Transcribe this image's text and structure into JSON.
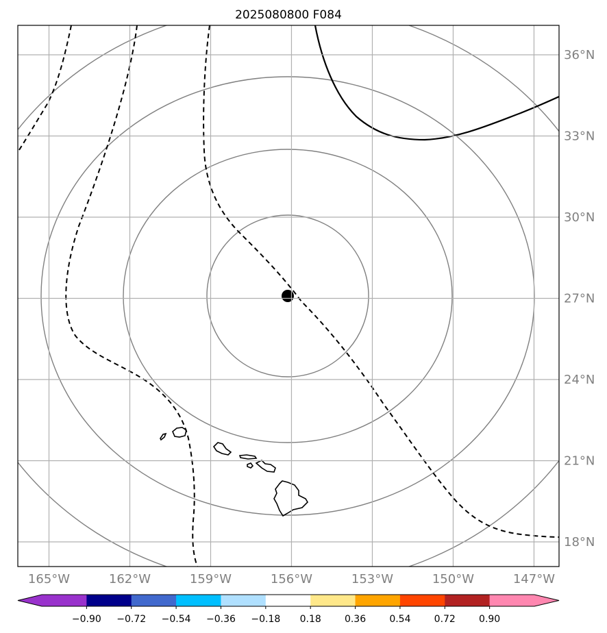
{
  "title": "2025080800 F084",
  "map": {
    "lon_range": [
      -166,
      -146
    ],
    "lat_range": [
      17,
      37
    ],
    "lat_labels": [
      {
        "lat": 36,
        "label": "36°N"
      },
      {
        "lat": 33,
        "label": "33°N"
      },
      {
        "lat": 30,
        "label": "30°N"
      },
      {
        "lat": 27,
        "label": "27°N"
      },
      {
        "lat": 24,
        "label": "24°N"
      },
      {
        "lat": 21,
        "label": "21°N"
      },
      {
        "lat": 18,
        "label": "18°N"
      }
    ],
    "lon_labels": [
      {
        "lon": -165,
        "label": "165°W"
      },
      {
        "lon": -162,
        "label": "162°W"
      },
      {
        "lon": -159,
        "label": "159°W"
      },
      {
        "lon": -156,
        "label": "156°W"
      },
      {
        "lon": -153,
        "label": "153°W"
      },
      {
        "lon": -150,
        "label": "150°W"
      },
      {
        "lon": -147,
        "label": "147°W"
      }
    ],
    "center_marker": {
      "lon": -155.5,
      "lat": 27.1
    },
    "grid_color": "#b0b0b0",
    "ring_color": "#808080"
  },
  "colorbar": {
    "ticks": [
      "−0.90",
      "−0.72",
      "−0.54",
      "−0.36",
      "−0.18",
      "0.18",
      "0.36",
      "0.54",
      "0.72",
      "0.90"
    ],
    "colors": [
      "#9932cc",
      "#00008b",
      "#4169cd",
      "#00bfff",
      "#b0e0ff",
      "#ffffff",
      "#ffe88a",
      "#ffa500",
      "#ff4500",
      "#b22222",
      "#ff87b0",
      "#ff87b0"
    ],
    "under_color": "#9932cc",
    "over_color": "#ff87b0"
  }
}
